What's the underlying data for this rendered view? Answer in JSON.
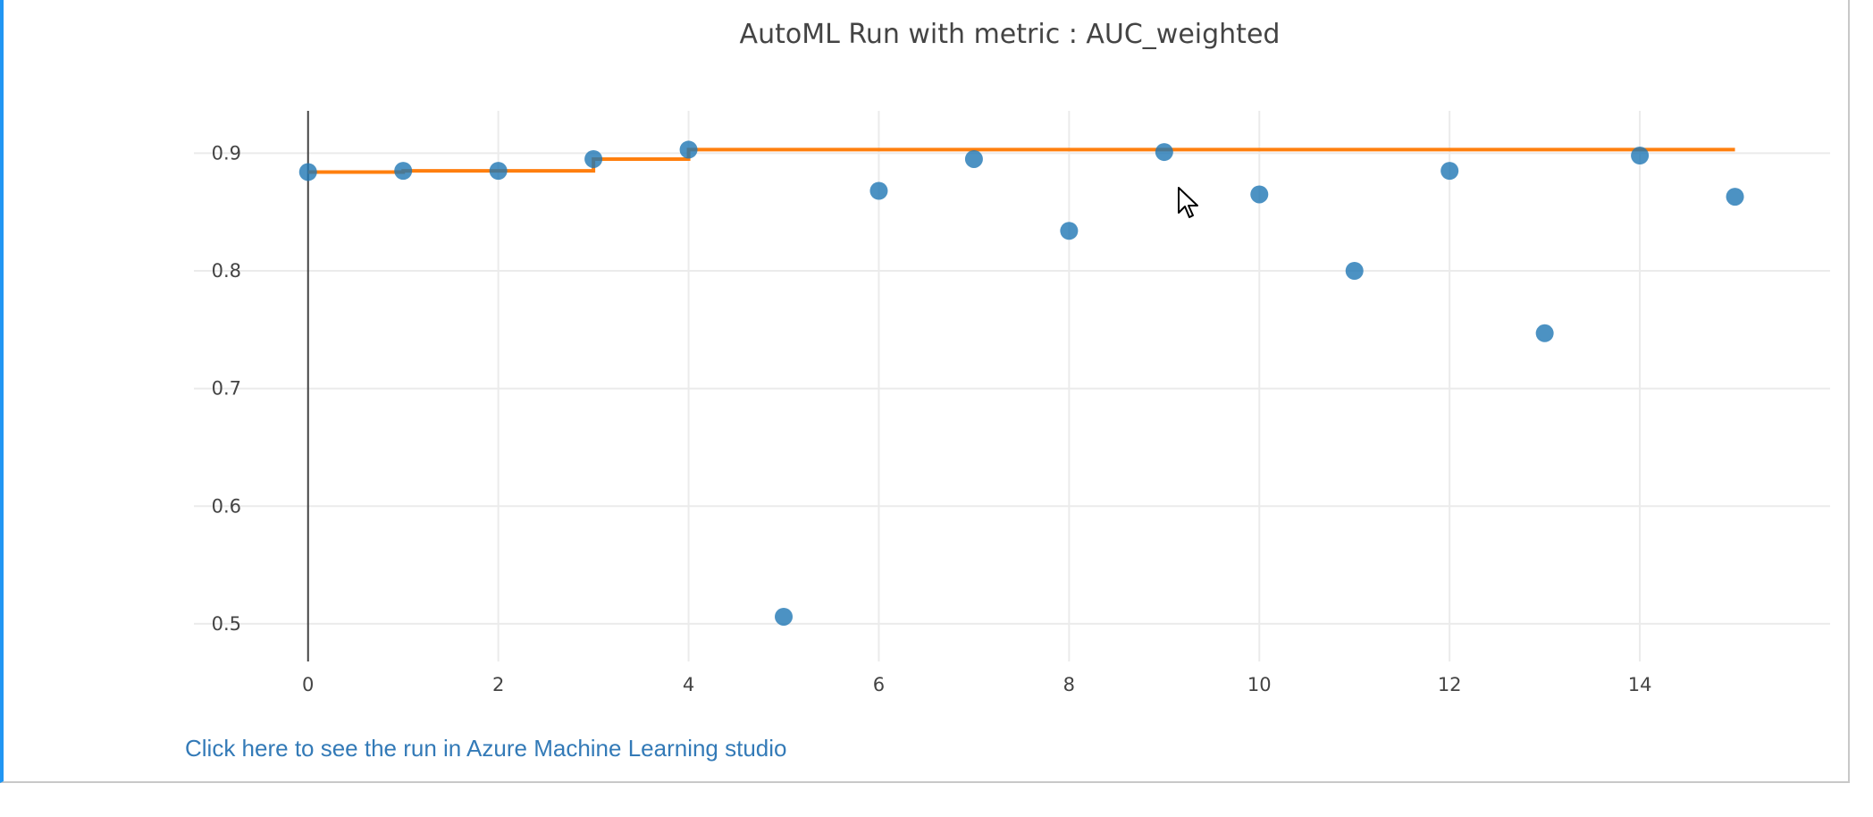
{
  "chart_data": {
    "type": "scatter",
    "title": "AutoML Run with metric : AUC_weighted",
    "xlabel": "",
    "ylabel": "",
    "xlim": [
      -1.2,
      16
    ],
    "ylim": [
      0.468,
      0.936
    ],
    "x_ticks": [
      0,
      2,
      4,
      6,
      8,
      10,
      12,
      14
    ],
    "x_tick_labels": [
      "0",
      "2",
      "4",
      "6",
      "8",
      "10",
      "12",
      "14"
    ],
    "y_ticks": [
      0.5,
      0.6,
      0.7,
      0.8,
      0.9
    ],
    "y_tick_labels": [
      "0.5",
      "0.6",
      "0.7",
      "0.8",
      "0.9"
    ],
    "grid": true,
    "legend": "none",
    "series": [
      {
        "type": "scatter",
        "color": "#1f77b4",
        "x": [
          0,
          1,
          2,
          3,
          4,
          5,
          6,
          7,
          8,
          9,
          10,
          11,
          12,
          13,
          14,
          15
        ],
        "y": [
          0.884,
          0.885,
          0.885,
          0.895,
          0.903,
          0.506,
          0.868,
          0.895,
          0.834,
          0.901,
          0.865,
          0.8,
          0.885,
          0.747,
          0.898,
          0.863
        ]
      },
      {
        "type": "line",
        "shape": "step",
        "color": "#ff7f0e",
        "x": [
          0,
          1,
          2,
          3,
          4,
          5,
          6,
          7,
          8,
          9,
          10,
          11,
          12,
          13,
          14,
          15
        ],
        "y": [
          0.884,
          0.885,
          0.885,
          0.895,
          0.903,
          0.903,
          0.903,
          0.903,
          0.903,
          0.903,
          0.903,
          0.903,
          0.903,
          0.903,
          0.903,
          0.903
        ]
      }
    ]
  },
  "link": {
    "text": "Click here to see the run in Azure Machine Learning studio"
  },
  "colors": {
    "accent_border": "#2196f3",
    "link": "#337ab7"
  }
}
